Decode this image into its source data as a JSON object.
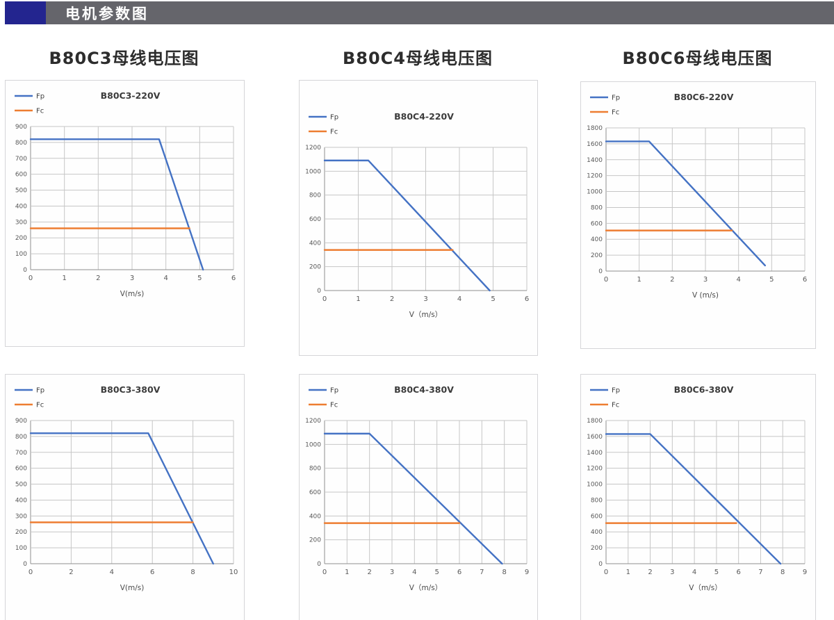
{
  "header": {
    "title": "电机参数图",
    "accent_color": "#23258F",
    "bar_color": "#65656B"
  },
  "top_titles": [
    "B80C3母线电压图",
    "B80C4母线电压图",
    "B80C6母线电压图"
  ],
  "colors": {
    "fp_line": "#4472C4",
    "fc_line": "#ED7D31",
    "grid": "#c6c6c6",
    "axis": "#8f8f8f",
    "tick_text": "#595959",
    "title_text": "#3c3c3c"
  },
  "chart_data": [
    {
      "type": "line",
      "title": "B80C3-220V",
      "xlabel": "V(m/s)",
      "xlim": [
        0,
        6
      ],
      "x_step": 1,
      "ylim": [
        0,
        900
      ],
      "y_step": 100,
      "grid": true,
      "legend_position": "top-left",
      "series": [
        {
          "name": "Fp",
          "color": "#4472C4",
          "points": [
            [
              0,
              820
            ],
            [
              3.8,
              820
            ],
            [
              5.1,
              0
            ]
          ]
        },
        {
          "name": "Fc",
          "color": "#ED7D31",
          "points": [
            [
              0,
              260
            ],
            [
              4.7,
              260
            ]
          ]
        }
      ]
    },
    {
      "type": "line",
      "title": "B80C4-220V",
      "xlabel": "V（m/s）",
      "xlim": [
        0,
        6
      ],
      "x_step": 1,
      "ylim": [
        0,
        1200
      ],
      "y_step": 200,
      "grid": true,
      "legend_position": "top-left",
      "series": [
        {
          "name": "Fp",
          "color": "#4472C4",
          "points": [
            [
              0,
              1090
            ],
            [
              1.3,
              1090
            ],
            [
              4.9,
              0
            ]
          ]
        },
        {
          "name": "Fc",
          "color": "#ED7D31",
          "points": [
            [
              0,
              340
            ],
            [
              3.8,
              340
            ]
          ]
        }
      ]
    },
    {
      "type": "line",
      "title": "B80C6-220V",
      "xlabel": "V (m/s)",
      "xlim": [
        0,
        6
      ],
      "x_step": 1,
      "ylim": [
        0,
        1800
      ],
      "y_step": 200,
      "grid": true,
      "legend_position": "top-left",
      "series": [
        {
          "name": "Fp",
          "color": "#4472C4",
          "points": [
            [
              0,
              1630
            ],
            [
              1.3,
              1630
            ],
            [
              4.8,
              70
            ]
          ]
        },
        {
          "name": "Fc",
          "color": "#ED7D31",
          "points": [
            [
              0,
              510
            ],
            [
              3.8,
              510
            ]
          ]
        }
      ]
    },
    {
      "type": "line",
      "title": "B80C3-380V",
      "xlabel": "V(m/s)",
      "xlim": [
        0,
        10
      ],
      "x_step": 2,
      "ylim": [
        0,
        900
      ],
      "y_step": 100,
      "grid": true,
      "legend_position": "top-left",
      "series": [
        {
          "name": "Fp",
          "color": "#4472C4",
          "points": [
            [
              0,
              820
            ],
            [
              5.8,
              820
            ],
            [
              9,
              0
            ]
          ]
        },
        {
          "name": "Fc",
          "color": "#ED7D31",
          "points": [
            [
              0,
              260
            ],
            [
              8,
              260
            ]
          ]
        }
      ]
    },
    {
      "type": "line",
      "title": "B80C4-380V",
      "xlabel": "V（m/s）",
      "xlim": [
        0,
        9
      ],
      "x_step": 1,
      "ylim": [
        0,
        1200
      ],
      "y_step": 200,
      "grid": true,
      "legend_position": "top-left",
      "series": [
        {
          "name": "Fp",
          "color": "#4472C4",
          "points": [
            [
              0,
              1090
            ],
            [
              2,
              1090
            ],
            [
              7.9,
              0
            ]
          ]
        },
        {
          "name": "Fc",
          "color": "#ED7D31",
          "points": [
            [
              0,
              340
            ],
            [
              6,
              340
            ]
          ]
        }
      ]
    },
    {
      "type": "line",
      "title": "B80C6-380V",
      "xlabel": "V（m/s）",
      "xlim": [
        0,
        9
      ],
      "x_step": 1,
      "ylim": [
        0,
        1800
      ],
      "y_step": 200,
      "grid": true,
      "legend_position": "top-left",
      "series": [
        {
          "name": "Fp",
          "color": "#4472C4",
          "points": [
            [
              0,
              1630
            ],
            [
              2,
              1630
            ],
            [
              7.9,
              0
            ]
          ]
        },
        {
          "name": "Fc",
          "color": "#ED7D31",
          "points": [
            [
              0,
              510
            ],
            [
              5.9,
              510
            ]
          ]
        }
      ]
    }
  ]
}
